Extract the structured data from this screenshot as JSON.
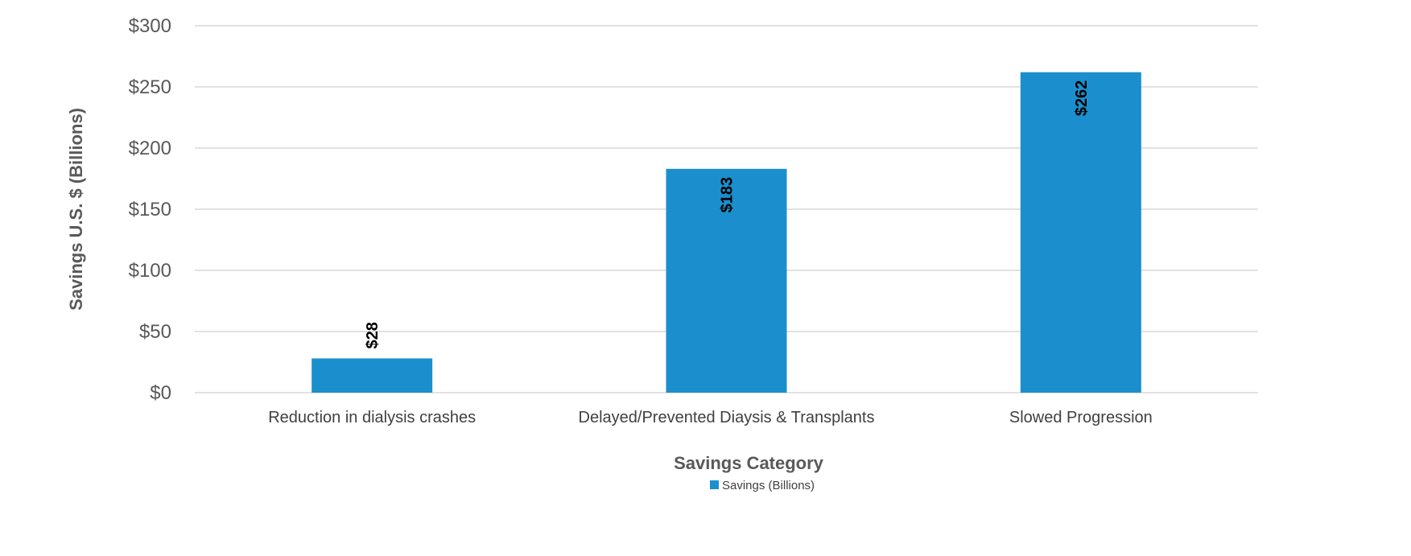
{
  "chart_data": {
    "type": "bar",
    "title": "",
    "xlabel": "Savings Category",
    "ylabel": "Savings U.S. $ (Billions)",
    "categories": [
      "Reduction in dialysis crashes",
      "Delayed/Prevented Diaysis & Transplants",
      "Slowed Progression"
    ],
    "series": [
      {
        "name": "Savings (Billions)",
        "values": [
          28,
          183,
          262
        ],
        "data_labels": [
          "$28",
          "$183",
          "$262"
        ],
        "color": "#1b8fce"
      }
    ],
    "ylim": [
      0,
      300
    ],
    "yticks": [
      0,
      50,
      100,
      150,
      200,
      250,
      300
    ],
    "ytick_labels": [
      "$0",
      "$50",
      "$100",
      "$150",
      "$200",
      "$250",
      "$300"
    ],
    "grid": true,
    "legend_position": "bottom-center",
    "gridline_color": "#d9d9d9"
  }
}
